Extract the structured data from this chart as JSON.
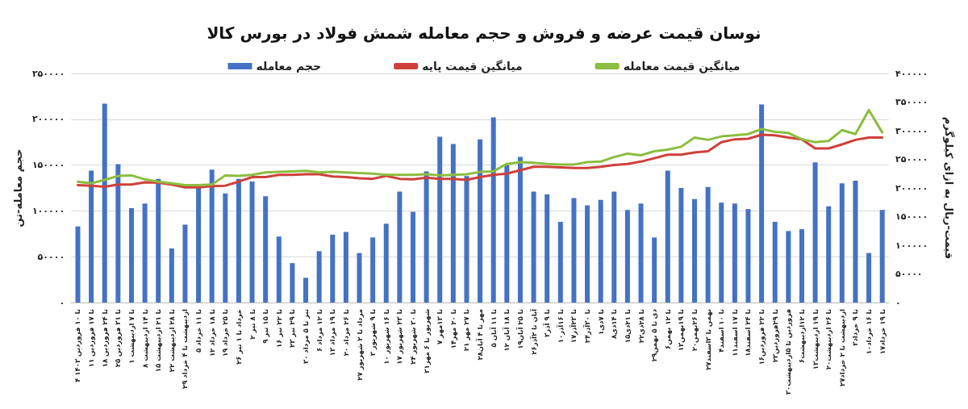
{
  "chart_data": {
    "type": "bar",
    "title": "نوسان قیمت عرضه و فروش و حجم معامله شمش فولاد در بورس کالا",
    "ylabel": "حجم معامله-تن",
    "y2label": "قیمت-ریال به ازای کیلوگرم",
    "categories": [
      "۴ تا ۱۰ فروردین ۱۴۰۳",
      "۱۱ تا ۱۷ فروردین",
      "۱۸ تا ۲۴ فروردین",
      "۲۵ تا ۳۱ فروردین",
      "۱ تا ۷ اردیبهشت",
      "۸ تا ۱۴ اردیبهشت",
      "۱۵ تا ۲۱ اردیبهشت",
      "۲۲ تا ۲۸ اردیبهشت",
      "۲۹ اردیبهشت تا ۴ خرداد",
      "۵ تا ۱۱ خرداد",
      "۱۲ تا ۱۸ خرداد",
      "۱۹ تا ۲۵ خرداد",
      "۲۶ خرداد تا ۱ تیر",
      "۲ تا ۸ تیر",
      "۹ تا ۱۵ تیر",
      "۱۶ تا ۲۲ تیر",
      "۲۳ تا ۲۹ تیر",
      "۳۰ تیر تا ۵ مرداد",
      "۶ تا ۱۲ مرداد",
      "۱۳ تا ۱۹ مرداد",
      "۲۰ تا ۲۶ مرداد",
      "۲۷ مرداد تا ۲ شهریور",
      "۳ تا ۹ شهریور",
      "۱۰ تا ۱۶ شهریور",
      "۱۷ تا ۲۳ شهریور",
      "۲۴ تا ۳۰ شهریور",
      "۳۱شهریور تا ۶ مهر",
      "۷ تا ۱۳مهر",
      "۱۴تا ۲۰ مهر",
      "۲۱ تا ۲۷ مهر",
      "۲۸مهر تا ۴ آبان",
      "۵ تا ۱۱ آبان",
      "۱۲ تا ۱۸ آبان",
      "۱۹تا ۲۵ آبان",
      "۲۶آبان تا ۲آذر",
      "۳تا ۹ آذر",
      "۱۰تا ۱۶آذر",
      "۱۷تا ۲۳آذر",
      "۲۴تا ۳۰آذر",
      "۱تا ۷دی",
      "۸تا ۱۴دی",
      "۱۵تا ۲۱دی",
      "۲۲تا ۲۸دی",
      "۲۹دی تا ۵ بهمن",
      "۶تا ۱۲ بهمن",
      "۱۳تا ۱۹بهمن",
      "۲۰تا ۲۶بهمن",
      "۲۷بهمن تا ۳اسفند",
      "۴تا ۱۰ اسفند",
      "۱۱تا ۱۷ اسفند",
      "۱۸تا ۲۴ اسفند",
      "۱۶تا ۲۲ فروردین",
      "۲۳تا ۲۹فروردین",
      "۳۰فروردین تا ۵اردیبهشت",
      "۶تا ۱۲اردیبهشت",
      "۱۳تا ۱۹ اردیبهشت",
      "۲۰تا ۲۶ اردیبهشت",
      "۲۷اردیبهشت تا ۲ خرداد",
      "۳تا ۹ خرداد",
      "۱۰تا ۱۶ خرداد",
      "۱۷تا ۱۹ خرداد"
    ],
    "series": [
      {
        "name": "حجم معامله",
        "color": "#4472c4",
        "values": [
          83000,
          144000,
          217000,
          151000,
          103000,
          108000,
          135000,
          59000,
          85000,
          126000,
          145000,
          119000,
          135000,
          132000,
          116000,
          72000,
          43000,
          27000,
          56000,
          74000,
          77000,
          54000,
          71000,
          86000,
          121000,
          99000,
          143000,
          181000,
          173000,
          138000,
          178000,
          202000,
          150000,
          159000,
          121000,
          118000,
          88000,
          114000,
          106000,
          112000,
          121000,
          101000,
          108000,
          71000,
          144000,
          125000,
          113000,
          126000,
          109000,
          108000,
          102000,
          216000,
          88000,
          78000,
          80000,
          153000,
          105000,
          130000,
          133000,
          54000,
          101000
        ]
      },
      {
        "name": "میانگین قیمت پایه",
        "type": "line",
        "axis": "y2",
        "color": "#d0403a",
        "values": [
          205000,
          204000,
          202000,
          206000,
          206000,
          210000,
          209000,
          206000,
          201000,
          201000,
          203000,
          204000,
          211000,
          219000,
          219000,
          223000,
          223000,
          224000,
          224000,
          220000,
          219000,
          217000,
          216000,
          221000,
          216000,
          215000,
          218000,
          216000,
          216000,
          214000,
          219000,
          223000,
          225000,
          231000,
          237000,
          237000,
          236000,
          235000,
          235000,
          237000,
          240000,
          242000,
          246000,
          252000,
          258000,
          258000,
          262000,
          264000,
          280000,
          285000,
          286000,
          293000,
          292000,
          288000,
          285000,
          269000,
          269000,
          276000,
          284000,
          288000,
          288000
        ]
      },
      {
        "name": "میانگین قیمت معامله",
        "type": "line",
        "axis": "y2",
        "color": "#8cbd3f",
        "values": [
          211000,
          208000,
          214000,
          221000,
          222000,
          215000,
          211000,
          208000,
          205000,
          205000,
          206000,
          222000,
          221000,
          223000,
          227000,
          228000,
          229000,
          230000,
          227000,
          228000,
          227000,
          226000,
          225000,
          223000,
          223000,
          223000,
          224000,
          222000,
          223000,
          224000,
          228000,
          229000,
          242000,
          245000,
          244000,
          242000,
          241000,
          241000,
          245000,
          246000,
          254000,
          260000,
          257000,
          264000,
          267000,
          272000,
          288000,
          284000,
          290000,
          292000,
          294000,
          303000,
          298000,
          296000,
          285000,
          280000,
          282000,
          301000,
          294000,
          336000,
          297000
        ]
      }
    ],
    "ylim": [
      0,
      250000
    ],
    "yticks": [
      {
        "value": 0,
        "label": "۰"
      },
      {
        "value": 50000,
        "label": "۵۰۰۰۰"
      },
      {
        "value": 100000,
        "label": "۱۰۰۰۰۰"
      },
      {
        "value": 150000,
        "label": "۱۵۰۰۰۰"
      },
      {
        "value": 200000,
        "label": "۲۰۰۰۰۰"
      },
      {
        "value": 250000,
        "label": "۲۵۰۰۰۰"
      }
    ],
    "y2lim": [
      0,
      400000
    ],
    "y2ticks": [
      {
        "value": 0,
        "label": "۰"
      },
      {
        "value": 50000,
        "label": "۵۰۰۰۰"
      },
      {
        "value": 100000,
        "label": "۱۰۰۰۰۰"
      },
      {
        "value": 150000,
        "label": "۱۵۰۰۰۰"
      },
      {
        "value": 200000,
        "label": "۲۰۰۰۰۰"
      },
      {
        "value": 250000,
        "label": "۲۵۰۰۰۰"
      },
      {
        "value": 300000,
        "label": "۳۰۰۰۰۰"
      },
      {
        "value": 350000,
        "label": "۳۵۰۰۰۰"
      },
      {
        "value": 400000,
        "label": "۴۰۰۰۰۰"
      }
    ],
    "grid": "y",
    "legend": "top",
    "marker": "none",
    "line_style": "solid"
  }
}
